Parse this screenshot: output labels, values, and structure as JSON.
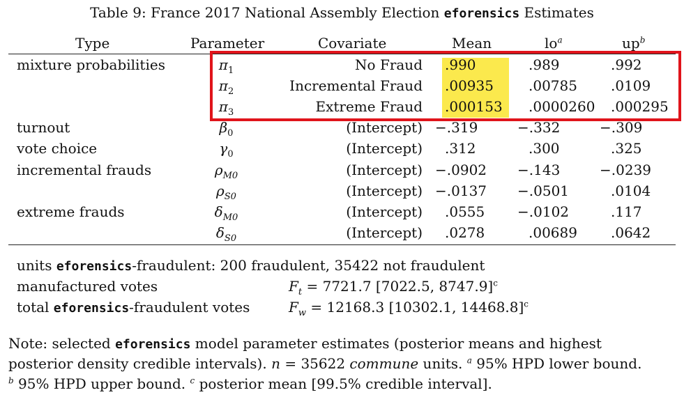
{
  "caption": {
    "prefix": "Table 9: France 2017 National Assembly Election ",
    "code": "eforensics",
    "suffix": " Estimates"
  },
  "columns": {
    "type": "Type",
    "parameter": "Parameter",
    "covariate": "Covariate",
    "mean": "Mean",
    "lo": "lo",
    "lo_sup": "a",
    "up": "up",
    "up_sup": "b"
  },
  "rows": [
    {
      "type": "mixture probabilities",
      "param": "π",
      "param_sub": "1",
      "covariate": "No Fraud",
      "mean": ".990",
      "lo": ".989",
      "up": ".992"
    },
    {
      "type": "",
      "param": "π",
      "param_sub": "2",
      "covariate": "Incremental Fraud",
      "mean": ".00935",
      "lo": ".00785",
      "up": ".0109"
    },
    {
      "type": "",
      "param": "π",
      "param_sub": "3",
      "covariate": "Extreme Fraud",
      "mean": ".000153",
      "lo": ".0000260",
      "up": ".000295"
    },
    {
      "type": "turnout",
      "param": "β",
      "param_sub": "0",
      "covariate": "(Intercept)",
      "mean": "−.319",
      "lo": "−.332",
      "up": "−.309"
    },
    {
      "type": "vote choice",
      "param": "γ",
      "param_sub": "0",
      "covariate": "(Intercept)",
      "mean": ".312",
      "lo": ".300",
      "up": ".325"
    },
    {
      "type": "incremental frauds",
      "param": "ρ",
      "param_sub": "M0",
      "covariate": "(Intercept)",
      "mean": "−.0902",
      "lo": "−.143",
      "up": "−.0239"
    },
    {
      "type": "",
      "param": "ρ",
      "param_sub": "S0",
      "covariate": "(Intercept)",
      "mean": "−.0137",
      "lo": "−.0501",
      "up": ".0104"
    },
    {
      "type": "extreme frauds",
      "param": "δ",
      "param_sub": "M0",
      "covariate": "(Intercept)",
      "mean": ".0555",
      "lo": "−.0102",
      "up": ".117"
    },
    {
      "type": "",
      "param": "δ",
      "param_sub": "S0",
      "covariate": "(Intercept)",
      "mean": ".0278",
      "lo": ".00689",
      "up": ".0642"
    }
  ],
  "summary": {
    "units_prefix": "units ",
    "units_code": "eforensics",
    "units_suffix": "-fraudulent: 200 fraudulent, 35422 not fraudulent",
    "manufactured_label": "manufactured votes",
    "ft_var": "F",
    "ft_sub": "t",
    "ft_value": " = 7721.7 [7022.5, 8747.9]",
    "ft_sup": "c",
    "total_prefix": "total ",
    "total_code": "eforensics",
    "total_suffix": "-fraudulent votes",
    "fw_var": "F",
    "fw_sub": "w",
    "fw_value": " = 12168.3 [10302.1, 14468.8]",
    "fw_sup": "c"
  },
  "note": {
    "l1_prefix": "Note: selected ",
    "l1_code": "eforensics",
    "l1_suffix": " model parameter estimates (posterior means and highest",
    "l2_a": "posterior density credible intervals). ",
    "l2_n": "n",
    "l2_b": " = 35622 ",
    "l2_commune": "commune",
    "l2_c": " units. ",
    "l2_sup": "a",
    "l2_d": " 95% HPD lower bound.",
    "l3_sup_b": "b",
    "l3_a": " 95% HPD upper bound. ",
    "l3_sup_c": "c",
    "l3_b": " posterior mean [99.5% credible interval]."
  },
  "colors": {
    "highlight": "#fbe94d",
    "box": "#e0141b"
  }
}
